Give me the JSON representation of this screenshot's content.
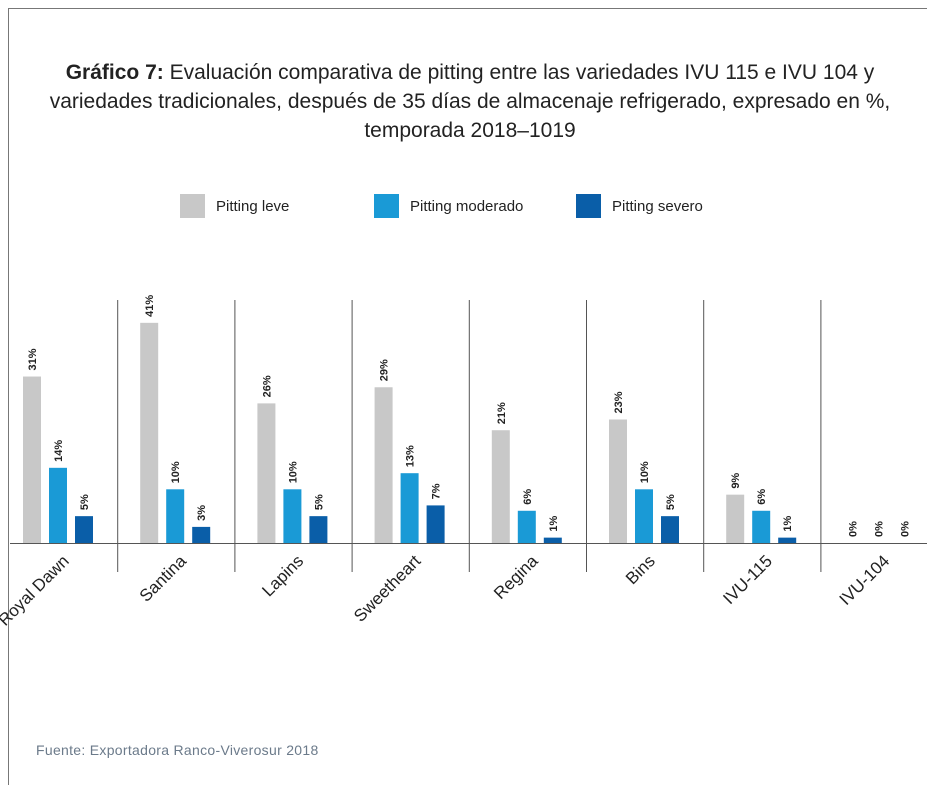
{
  "chart_data": {
    "type": "bar",
    "title_prefix": "Gráfico 7:",
    "title": "Evaluación comparativa de pitting entre las variedades IVU 115 e IVU 104 y variedades tradicionales, después de 35 días de almacenaje refrigerado, expresado en %, temporada 2018–1019",
    "source": "Fuente: Exportadora Ranco-Viverosur 2018",
    "categories": [
      "Royal Dawn",
      "Santina",
      "Lapins",
      "Sweetheart",
      "Regina",
      "Bins",
      "IVU-115",
      "IVU-104"
    ],
    "series": [
      {
        "name": "Pitting leve",
        "color": "#c8c8c8",
        "values": [
          31,
          41,
          26,
          29,
          21,
          23,
          9,
          0
        ],
        "value_labels": [
          "31%",
          "41%",
          "26%",
          "29%",
          "21%",
          "23%",
          "9%",
          "0%"
        ]
      },
      {
        "name": "Pitting moderado",
        "color": "#1a9ad6",
        "values": [
          14,
          10,
          10,
          13,
          6,
          10,
          6,
          0
        ],
        "value_labels": [
          "14%",
          "10%",
          "10%",
          "13%",
          "6%",
          "10%",
          "6%",
          "0%"
        ]
      },
      {
        "name": "Pitting severo",
        "color": "#0a5ea8",
        "values": [
          5,
          3,
          5,
          7,
          1,
          5,
          1,
          0
        ],
        "value_labels": [
          "5%",
          "3%",
          "5%",
          "7%",
          "1%",
          "5%",
          "1%",
          "0%"
        ]
      }
    ],
    "legend": "top"
  }
}
